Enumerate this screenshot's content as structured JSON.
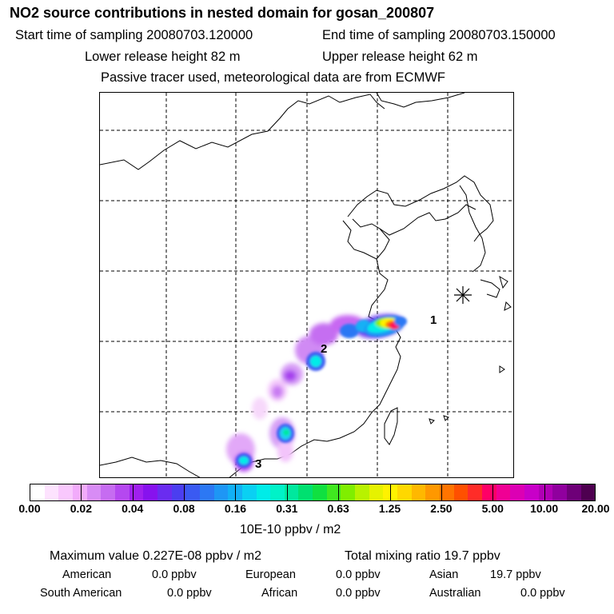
{
  "header": {
    "title": "NO2 source contributions in nested domain for gosan_200807",
    "start_time": "Start time of sampling 20080703.120000",
    "end_time": "End time of sampling 20080703.150000",
    "lower_release": "Lower release height   82 m",
    "upper_release": "Upper release height   62 m",
    "tracer_note": "Passive tracer used, meteorological data are from ECMWF"
  },
  "map": {
    "receptor_symbol": "asterisk-receptor-icon",
    "source_regions": [
      {
        "label": "1"
      },
      {
        "label": "2"
      },
      {
        "label": "3"
      }
    ]
  },
  "colorbar": {
    "ticks": [
      "0.00",
      "0.02",
      "0.04",
      "0.08",
      "0.16",
      "0.31",
      "0.63",
      "1.25",
      "2.50",
      "5.00",
      "10.00",
      "20.00"
    ],
    "colors": [
      "#ffffff",
      "#fde3fe",
      "#f9c8fd",
      "#f2abfb",
      "#d88cf5",
      "#c66cf1",
      "#b548f0",
      "#a020ee",
      "#8712ee",
      "#6a2cf0",
      "#4b3ef0",
      "#3a5af2",
      "#2c78f4",
      "#1e96f5",
      "#12b0f5",
      "#0ad0f3",
      "#00ece8",
      "#00f2c8",
      "#00e89e",
      "#00e070",
      "#10e040",
      "#40e820",
      "#80ee00",
      "#b8f200",
      "#e6f200",
      "#fff200",
      "#ffd800",
      "#ffb800",
      "#ff9800",
      "#ff7400",
      "#ff5000",
      "#ff2c28",
      "#ff0066",
      "#f00094",
      "#dc00b4",
      "#c800c8",
      "#b000b4",
      "#90009e",
      "#6e0078",
      "#4e0050"
    ],
    "unit": "10E-10 ppbv / m2"
  },
  "summary": {
    "maximum": "Maximum value  0.227E-08 ppbv / m2",
    "total": "Total mixing ratio       19.7 ppbv",
    "regions": [
      {
        "name": "American",
        "value": "0.0 ppbv"
      },
      {
        "name": "European",
        "value": "0.0 ppbv"
      },
      {
        "name": "Asian",
        "value": "19.7 ppbv"
      },
      {
        "name": "South American",
        "value": "0.0 ppbv"
      },
      {
        "name": "African",
        "value": "0.0 ppbv"
      },
      {
        "name": "Australian",
        "value": "0.0 ppbv"
      }
    ]
  }
}
